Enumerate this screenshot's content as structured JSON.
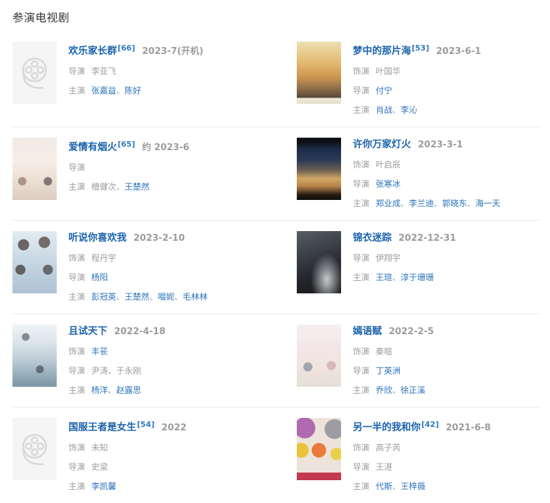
{
  "header": {
    "title": "参演电视剧"
  },
  "colors": {
    "link_blue": "#1b63ad",
    "name_link_blue": "#2a72bc",
    "muted_gray": "#9c9c9c",
    "heading_dark": "#333333",
    "separator_gray": "#e9e9e9",
    "placeholder_bg": "#f5f5f5"
  },
  "name_separator": "、",
  "shows": [
    {
      "title": "欢乐家长群",
      "ref": "[66]",
      "date": "2023-7(开机)",
      "poster": "reel-placeholder",
      "credits": [
        {
          "label": "导演",
          "names": [
            {
              "text": "李亚飞",
              "link": false
            }
          ]
        },
        {
          "label": "主演",
          "names": [
            {
              "text": "张嘉益",
              "link": true
            },
            {
              "text": "陈好",
              "link": true
            }
          ]
        }
      ]
    },
    {
      "title": "梦中的那片海",
      "ref": "[53]",
      "date": "2023-6-1",
      "poster": "dream-sea",
      "credits": [
        {
          "label": "饰演",
          "names": [
            {
              "text": "叶国华",
              "link": false
            }
          ]
        },
        {
          "label": "导演",
          "names": [
            {
              "text": "付宁",
              "link": true
            }
          ]
        },
        {
          "label": "主演",
          "names": [
            {
              "text": "肖战",
              "link": true
            },
            {
              "text": "李沁",
              "link": true
            }
          ]
        }
      ]
    },
    {
      "title": "爱情有烟火",
      "ref": "[65]",
      "date": "约 2023-6",
      "poster": "love-fireworks",
      "credits": [
        {
          "label": "导演",
          "names": []
        },
        {
          "label": "主演",
          "names": [
            {
              "text": "檀健次",
              "link": false
            },
            {
              "text": "王楚然",
              "link": true
            }
          ]
        }
      ]
    },
    {
      "title": "许你万家灯火",
      "ref": null,
      "date": "2023-3-1",
      "poster": "wanjia-lights",
      "credits": [
        {
          "label": "饰演",
          "names": [
            {
              "text": "叶启辰",
              "link": false
            }
          ]
        },
        {
          "label": "导演",
          "names": [
            {
              "text": "张寒冰",
              "link": true
            }
          ]
        },
        {
          "label": "主演",
          "names": [
            {
              "text": "郑业成",
              "link": true
            },
            {
              "text": "李兰迪",
              "link": true
            },
            {
              "text": "郭晓东",
              "link": true
            },
            {
              "text": "海一天",
              "link": true
            }
          ]
        }
      ]
    },
    {
      "title": "听说你喜欢我",
      "ref": null,
      "date": "2023-2-10",
      "poster": "hear-you-like-me",
      "credits": [
        {
          "label": "饰演",
          "names": [
            {
              "text": "程丹宇",
              "link": false
            }
          ]
        },
        {
          "label": "导演",
          "names": [
            {
              "text": "杨阳",
              "link": true
            }
          ]
        },
        {
          "label": "主演",
          "names": [
            {
              "text": "彭冠英",
              "link": true
            },
            {
              "text": "王楚然",
              "link": true
            },
            {
              "text": "啜妮",
              "link": true
            },
            {
              "text": "毛林林",
              "link": true
            }
          ]
        }
      ]
    },
    {
      "title": "锦衣迷踪",
      "ref": null,
      "date": "2022-12-31",
      "poster": "jinyi-mizong",
      "credits": [
        {
          "label": "导演",
          "names": [
            {
              "text": "伊翔宇",
              "link": false
            }
          ]
        },
        {
          "label": "主演",
          "names": [
            {
              "text": "王瑄",
              "link": true
            },
            {
              "text": "淳于珊珊",
              "link": true
            }
          ]
        }
      ]
    },
    {
      "title": "且试天下",
      "ref": null,
      "date": "2022-4-18",
      "poster": "qie-shi-tian-xia",
      "credits": [
        {
          "label": "饰演",
          "names": [
            {
              "text": "丰苌",
              "link": true
            }
          ]
        },
        {
          "label": "导演",
          "names": [
            {
              "text": "尹涛",
              "link": false
            },
            {
              "text": "于永刚",
              "link": false
            }
          ]
        },
        {
          "label": "主演",
          "names": [
            {
              "text": "杨洋",
              "link": true
            },
            {
              "text": "赵露思",
              "link": true
            }
          ]
        }
      ]
    },
    {
      "title": "嫣语赋",
      "ref": null,
      "date": "2022-2-5",
      "poster": "yan-yu-fu",
      "credits": [
        {
          "label": "饰演",
          "names": [
            {
              "text": "秦暄",
              "link": false
            }
          ]
        },
        {
          "label": "导演",
          "names": [
            {
              "text": "丁英洲",
              "link": true
            }
          ]
        },
        {
          "label": "主演",
          "names": [
            {
              "text": "乔欣",
              "link": true
            },
            {
              "text": "徐正溪",
              "link": true
            }
          ]
        }
      ]
    },
    {
      "title": "国服王者是女生",
      "ref": "[54]",
      "date": "2022",
      "poster": "reel-placeholder",
      "credits": [
        {
          "label": "饰演",
          "names": [
            {
              "text": "未知",
              "link": false
            }
          ]
        },
        {
          "label": "导演",
          "names": [
            {
              "text": "史梁",
              "link": false
            }
          ]
        },
        {
          "label": "主演",
          "names": [
            {
              "text": "李凯馨",
              "link": true
            }
          ]
        }
      ]
    },
    {
      "title": "另一半的我和你",
      "ref": "[42]",
      "date": "2021-6-8",
      "poster": "other-half",
      "credits": [
        {
          "label": "饰演",
          "names": [
            {
              "text": "高子芮",
              "link": false
            }
          ]
        },
        {
          "label": "导演",
          "names": [
            {
              "text": "王湛",
              "link": false
            }
          ]
        },
        {
          "label": "主演",
          "names": [
            {
              "text": "代斯",
              "link": true
            },
            {
              "text": "王梓薇",
              "link": true
            }
          ]
        }
      ]
    }
  ]
}
